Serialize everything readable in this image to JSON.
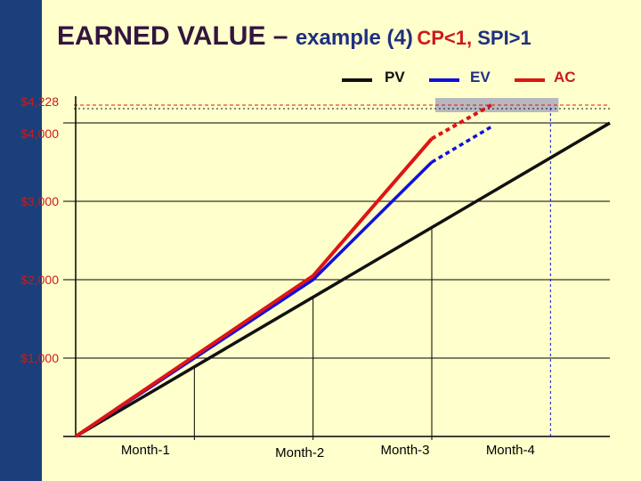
{
  "title": {
    "part1": "EARNED  VALUE",
    "dash": " – ",
    "part2": "example (4)",
    "part3": "CP<1, ",
    "part4": "SPI>1"
  },
  "colors": {
    "background": "#ffffcc",
    "sidebar": "#1a3f7a",
    "pv": "#111111",
    "ev": "#1010dd",
    "ac": "#dd1515",
    "highlight": "#b8b8c0",
    "axis_label": "#cc1a1a"
  },
  "chart_data": {
    "type": "line",
    "xlabel": "",
    "ylabel": "",
    "x_tick_labels": [
      "Month-1",
      "Month-2",
      "Month-3",
      "Month-4"
    ],
    "y_tick_labels": [
      "$4,228",
      "$4,000",
      "$3,000",
      "$2,000",
      "$1,000"
    ],
    "ylim": [
      0,
      4228
    ],
    "xlim": [
      0,
      4.5
    ],
    "legend": {
      "placement": "top-right",
      "entries": [
        "PV",
        "EV",
        "AC"
      ]
    },
    "series": [
      {
        "name": "PV",
        "x": [
          0,
          4.5
        ],
        "y": [
          0,
          4000
        ]
      },
      {
        "name": "EV",
        "x": [
          0,
          2,
          3,
          3.5
        ],
        "y": [
          0,
          2000,
          3500,
          3950
        ],
        "dashed_from_x": 3
      },
      {
        "name": "AC",
        "x": [
          0,
          2,
          3,
          3.5
        ],
        "y": [
          0,
          2050,
          3800,
          4228
        ],
        "dashed_from_x": 3
      }
    ],
    "reference_line": {
      "y": 4228,
      "style": "dashed"
    },
    "highlight_band": {
      "x": [
        3,
        4
      ],
      "y_center": 4228
    }
  }
}
